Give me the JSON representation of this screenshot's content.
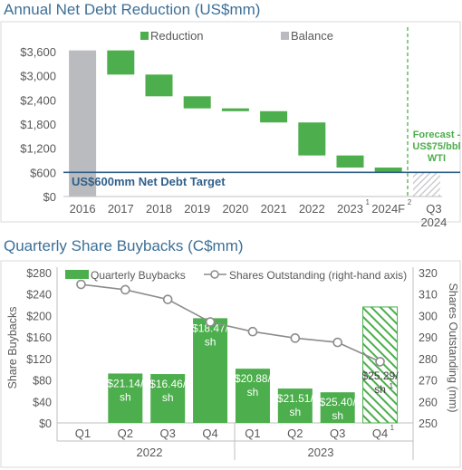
{
  "colors": {
    "green": "#4cae4c",
    "gray": "#b9bbbe",
    "target_line": "#2f5f8a",
    "forecast": "#4cae4c",
    "hatch": "#c4c6c8",
    "line": "#8c8c8c",
    "axis_text": "#595959"
  },
  "chart_data": [
    {
      "type": "bar",
      "subtype": "waterfall",
      "title": "Annual Net Debt Reduction (US$mm)",
      "legend": [
        "Reduction",
        "Balance"
      ],
      "legend_position": "top",
      "categories": [
        "2016",
        "2017",
        "2018",
        "2019",
        "2020",
        "2021",
        "2022",
        "2023",
        "2024F",
        "Q3 2024"
      ],
      "category_superscripts": {
        "2023": "1",
        "2024F": "2"
      },
      "balance_start": 3630,
      "bars": [
        {
          "category": "2016",
          "kind": "balance",
          "low": 0,
          "high": 3630
        },
        {
          "category": "2017",
          "kind": "reduction",
          "low": 3030,
          "high": 3630
        },
        {
          "category": "2018",
          "kind": "reduction",
          "low": 2490,
          "high": 3030
        },
        {
          "category": "2019",
          "kind": "reduction",
          "low": 2190,
          "high": 2490
        },
        {
          "category": "2020",
          "kind": "reduction",
          "low": 2120,
          "high": 2190
        },
        {
          "category": "2021",
          "kind": "reduction",
          "low": 1840,
          "high": 2120
        },
        {
          "category": "2022",
          "kind": "reduction",
          "low": 1020,
          "high": 1840
        },
        {
          "category": "2023",
          "kind": "reduction",
          "low": 720,
          "high": 1020
        },
        {
          "category": "2024F",
          "kind": "reduction",
          "low": 600,
          "high": 720
        },
        {
          "category": "Q3 2024",
          "kind": "forecast-balance",
          "low": 0,
          "high": 600
        }
      ],
      "yticks": [
        "$0",
        "$600",
        "$1,200",
        "$1,800",
        "$2,400",
        "$3,000",
        "$3,600"
      ],
      "ylim": [
        0,
        3800
      ],
      "target_value": 600,
      "target_label": "US$600mm Net Debt Target",
      "forecast_label": [
        "Forecast -",
        "US$75/bbl",
        "WTI"
      ],
      "grid": false
    },
    {
      "type": "bar",
      "subtype": "bar-line combo",
      "title": "Quarterly Share Buybacks (C$mm)",
      "ylabel": "Share Buybacks",
      "y2label": "Shares Outstanding (mm)",
      "legend_position": "top",
      "categories": [
        "Q1",
        "Q2",
        "Q3",
        "Q4",
        "Q1",
        "Q2",
        "Q3",
        "Q4"
      ],
      "category_superscripts": {
        "7": "1"
      },
      "years": [
        "2022",
        "2023"
      ],
      "series": [
        {
          "name": "Quarterly Buybacks",
          "values": [
            0,
            92,
            91,
            195,
            101,
            64,
            57,
            216
          ],
          "forecast_index": 7
        },
        {
          "name": "Shares Outstanding (right-hand axis)",
          "values": [
            314.5,
            312,
            307.5,
            297,
            292.5,
            289.5,
            287.5,
            278.5
          ],
          "axis": "right"
        }
      ],
      "bar_labels": [
        null,
        [
          "$21.14/",
          "sh"
        ],
        [
          "$16.46/",
          "sh"
        ],
        [
          "$18.47/",
          "sh"
        ],
        [
          "$20.88/",
          "sh"
        ],
        [
          "$21.51/",
          "sh"
        ],
        [
          "$25.40/",
          "sh"
        ],
        [
          "$25.29/",
          "sh"
        ]
      ],
      "bar_label_superscripts": {
        "7": "1"
      },
      "ylim": [
        0,
        280
      ],
      "y2lim": [
        250,
        320
      ],
      "yticks": [
        "$0",
        "$40",
        "$80",
        "$120",
        "$160",
        "$200",
        "$240",
        "$280"
      ],
      "y2ticks": [
        "250",
        "260",
        "270",
        "280",
        "290",
        "300",
        "310",
        "320"
      ],
      "grid": false
    }
  ]
}
